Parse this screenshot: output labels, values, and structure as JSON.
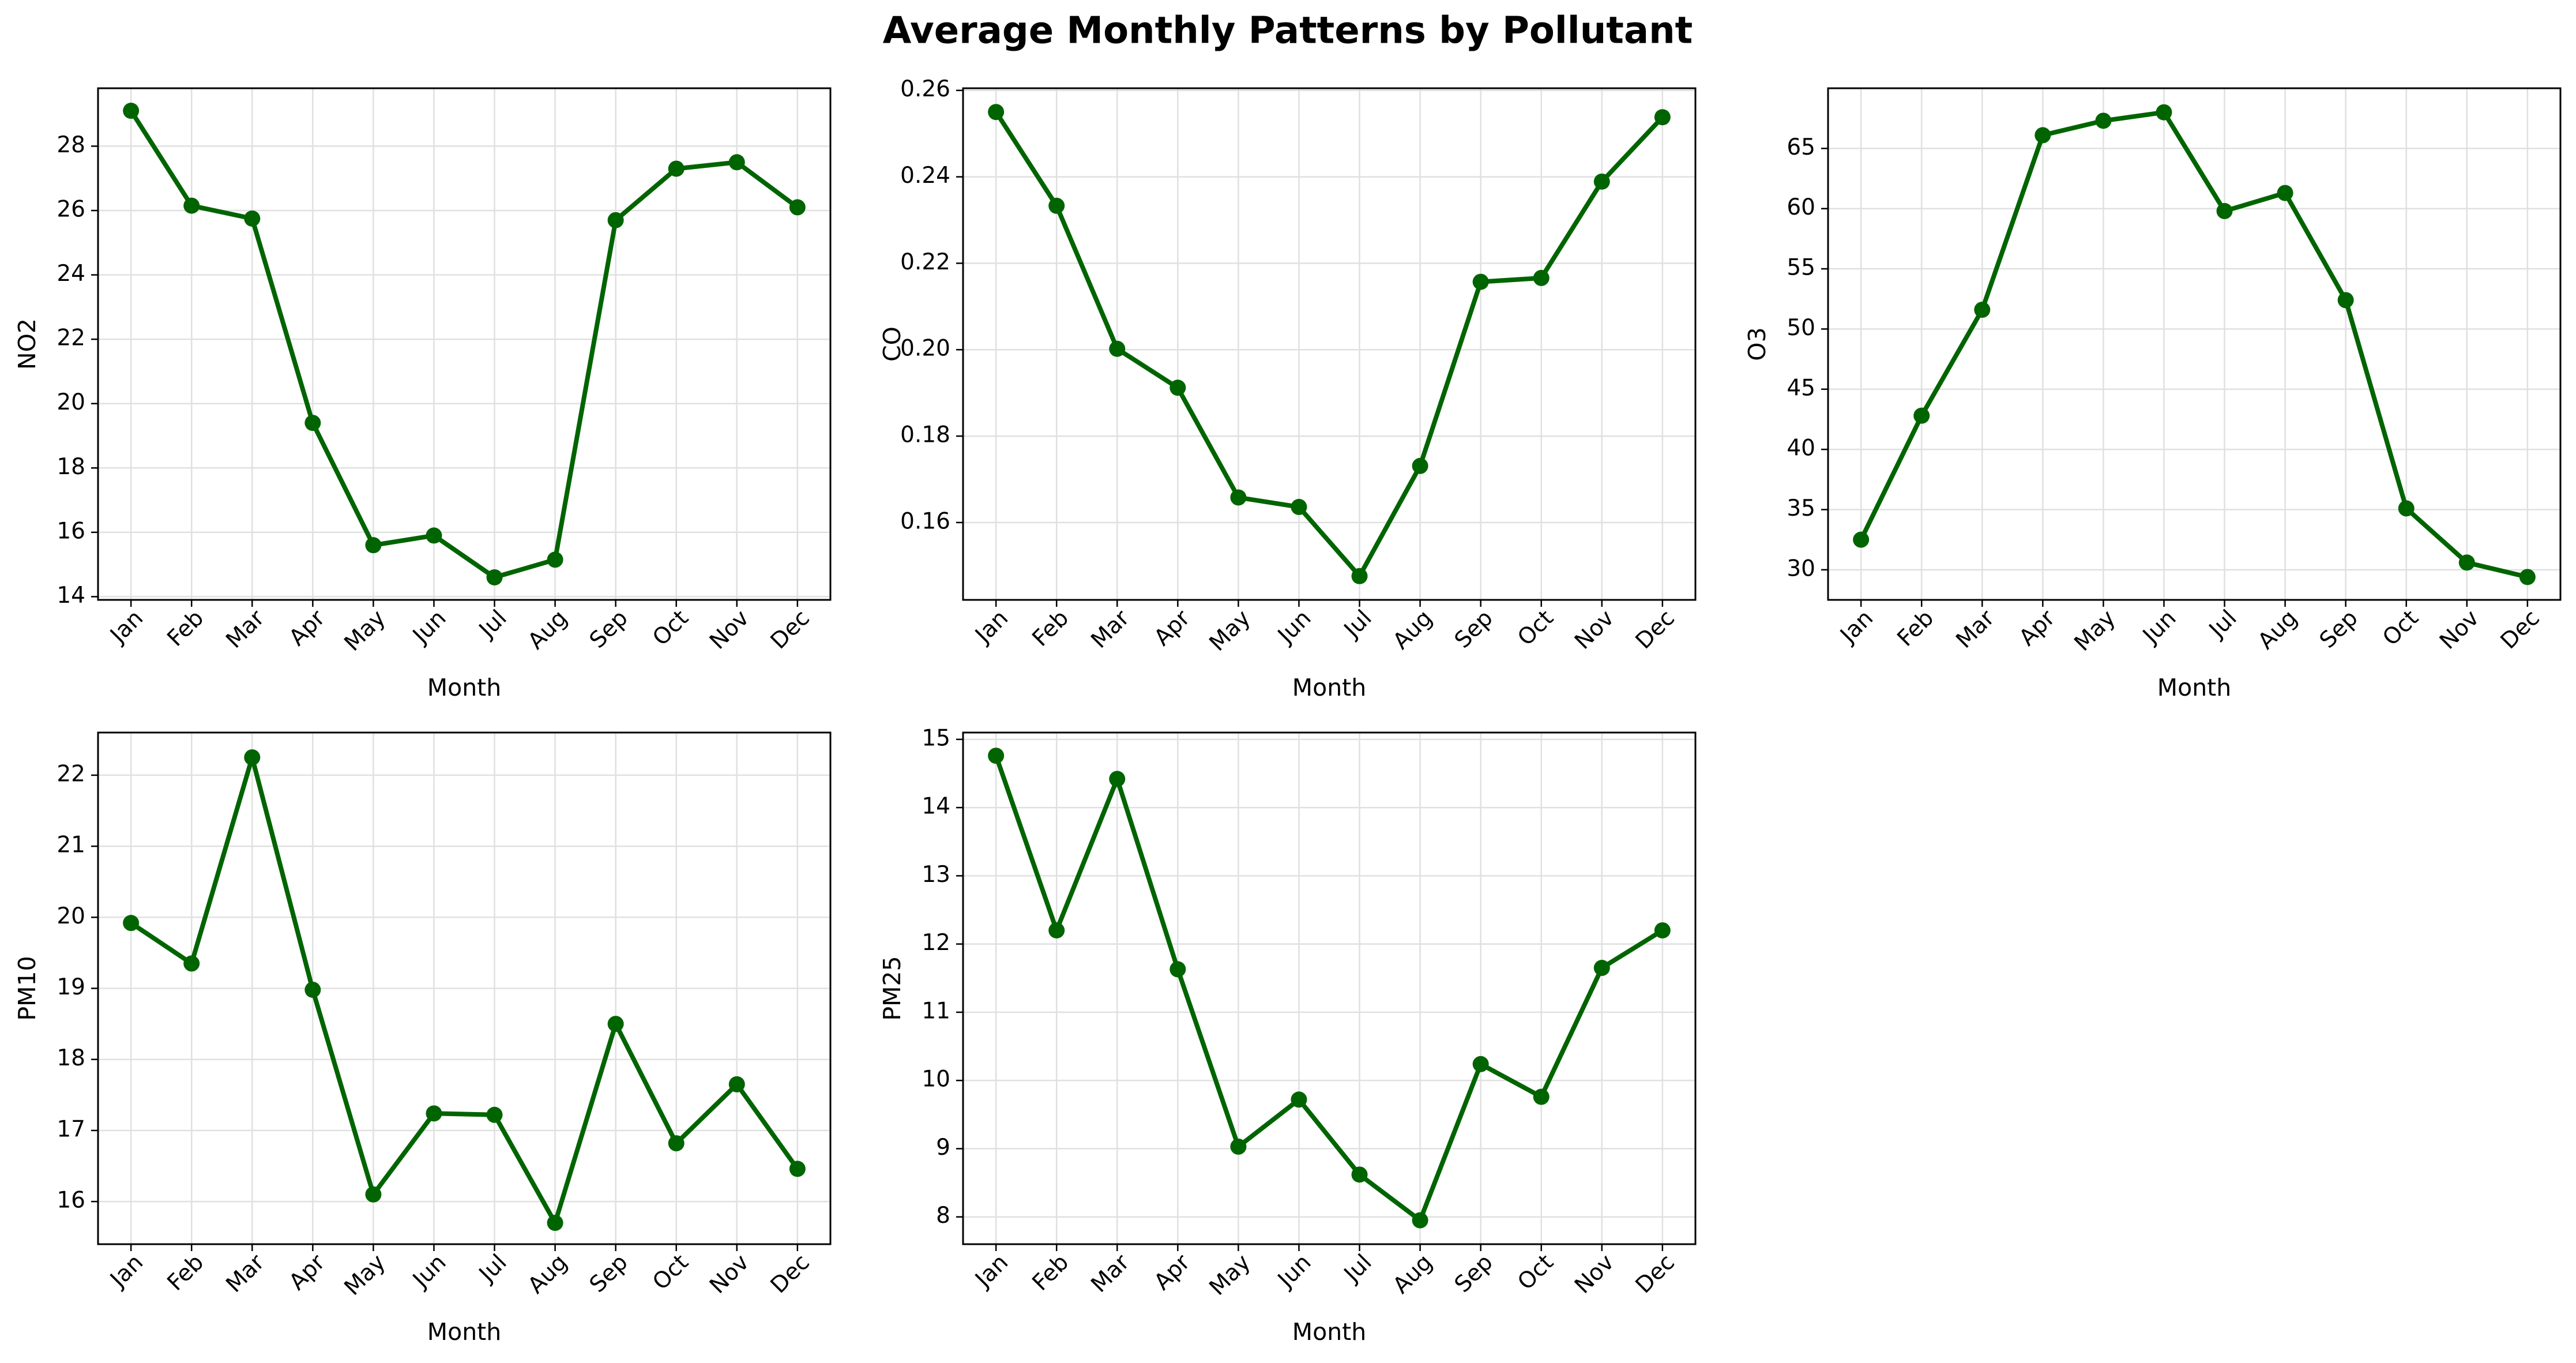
{
  "figure": {
    "title": "Average Monthly Patterns by Pollutant",
    "line_color": "#006400",
    "grid_color": "#e0e0e0"
  },
  "chart_data": [
    {
      "type": "line",
      "title": "",
      "xlabel": "Month",
      "ylabel": "NO2",
      "categories": [
        "Jan",
        "Feb",
        "Mar",
        "Apr",
        "May",
        "Jun",
        "Jul",
        "Aug",
        "Sep",
        "Oct",
        "Nov",
        "Dec"
      ],
      "values": [
        29.1,
        26.15,
        25.75,
        19.4,
        15.6,
        15.9,
        14.6,
        15.15,
        25.7,
        27.3,
        27.5,
        26.1
      ],
      "ylim": [
        13.9,
        29.8
      ],
      "yticks": [
        14,
        16,
        18,
        20,
        22,
        24,
        26,
        28
      ],
      "grid": true
    },
    {
      "type": "line",
      "title": "",
      "xlabel": "Month",
      "ylabel": "CO",
      "categories": [
        "Jan",
        "Feb",
        "Mar",
        "Apr",
        "May",
        "Jun",
        "Jul",
        "Aug",
        "Sep",
        "Oct",
        "Nov",
        "Dec"
      ],
      "values": [
        0.255,
        0.2333,
        0.2002,
        0.1912,
        0.1658,
        0.1636,
        0.1476,
        0.1731,
        0.2157,
        0.2166,
        0.2389,
        0.2538
      ],
      "ylim": [
        0.1421,
        0.2605
      ],
      "yticks": [
        0.16,
        0.18,
        0.2,
        0.22,
        0.24,
        0.26
      ],
      "ytick_decimals": 2,
      "grid": true
    },
    {
      "type": "line",
      "title": "",
      "xlabel": "Month",
      "ylabel": "O3",
      "categories": [
        "Jan",
        "Feb",
        "Mar",
        "Apr",
        "May",
        "Jun",
        "Jul",
        "Aug",
        "Sep",
        "Oct",
        "Nov",
        "Dec"
      ],
      "values": [
        32.5,
        42.8,
        51.6,
        66.1,
        67.3,
        68.0,
        59.8,
        61.3,
        52.4,
        35.1,
        30.6,
        29.4
      ],
      "ylim": [
        27.5,
        70.0
      ],
      "yticks": [
        30,
        35,
        40,
        45,
        50,
        55,
        60,
        65
      ],
      "grid": true
    },
    {
      "type": "line",
      "title": "",
      "xlabel": "Month",
      "ylabel": "PM10",
      "categories": [
        "Jan",
        "Feb",
        "Mar",
        "Apr",
        "May",
        "Jun",
        "Jul",
        "Aug",
        "Sep",
        "Oct",
        "Nov",
        "Dec"
      ],
      "values": [
        19.92,
        19.35,
        22.25,
        18.98,
        16.1,
        17.24,
        17.22,
        15.7,
        18.5,
        16.82,
        17.65,
        16.46
      ],
      "ylim": [
        15.4,
        22.6
      ],
      "yticks": [
        16,
        17,
        18,
        19,
        20,
        21,
        22
      ],
      "grid": true
    },
    {
      "type": "line",
      "title": "",
      "xlabel": "Month",
      "ylabel": "PM25",
      "categories": [
        "Jan",
        "Feb",
        "Mar",
        "Apr",
        "May",
        "Jun",
        "Jul",
        "Aug",
        "Sep",
        "Oct",
        "Nov",
        "Dec"
      ],
      "values": [
        14.76,
        12.2,
        14.42,
        11.63,
        9.03,
        9.72,
        8.62,
        7.95,
        10.24,
        9.76,
        11.65,
        12.2
      ],
      "ylim": [
        7.6,
        15.1
      ],
      "yticks": [
        8,
        9,
        10,
        11,
        12,
        13,
        14,
        15
      ],
      "grid": true
    }
  ]
}
